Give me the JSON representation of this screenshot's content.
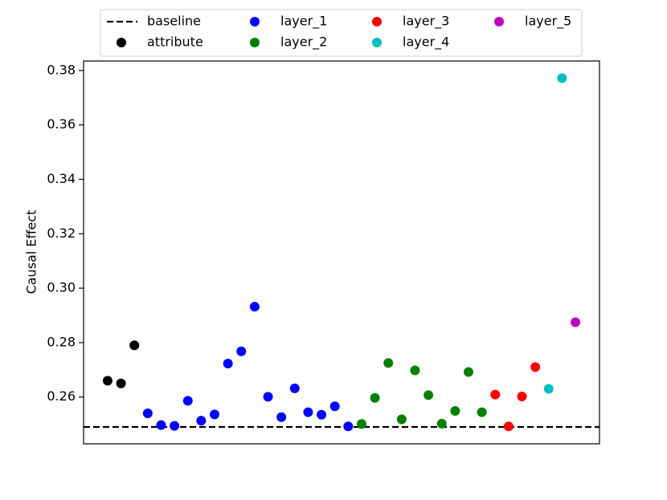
{
  "chart_data": {
    "type": "scatter",
    "title": "",
    "xlabel": "",
    "ylabel": "Causal Effect",
    "ylim": [
      0.2428,
      0.3835
    ],
    "xlim": [
      -1.8,
      36.8
    ],
    "yticks": [
      0.26,
      0.28,
      0.3,
      0.32,
      0.34,
      0.36,
      0.38
    ],
    "ytick_labels": [
      "0.26",
      "0.28",
      "0.30",
      "0.32",
      "0.34",
      "0.36",
      "0.38"
    ],
    "show_x_ticks": false,
    "grid": false,
    "legend_position": "top-center, above plot",
    "baseline": {
      "name": "baseline",
      "value": 0.249,
      "color": "#000000",
      "style": "dashed"
    },
    "series": [
      {
        "name": "attribute",
        "color": "#000000",
        "points": [
          {
            "x": 0,
            "y": 0.266
          },
          {
            "x": 1,
            "y": 0.265
          },
          {
            "x": 2,
            "y": 0.279
          }
        ]
      },
      {
        "name": "layer_1",
        "color": "#0000ff",
        "points": [
          {
            "x": 3,
            "y": 0.254
          },
          {
            "x": 4,
            "y": 0.2497
          },
          {
            "x": 5,
            "y": 0.2494
          },
          {
            "x": 6,
            "y": 0.2586
          },
          {
            "x": 7,
            "y": 0.2513
          },
          {
            "x": 8,
            "y": 0.2536
          },
          {
            "x": 9,
            "y": 0.2723
          },
          {
            "x": 10,
            "y": 0.2768
          },
          {
            "x": 11,
            "y": 0.2932
          },
          {
            "x": 12,
            "y": 0.2601
          },
          {
            "x": 13,
            "y": 0.2526
          },
          {
            "x": 14,
            "y": 0.2632
          },
          {
            "x": 15,
            "y": 0.2544
          },
          {
            "x": 16,
            "y": 0.2535
          },
          {
            "x": 17,
            "y": 0.2566
          },
          {
            "x": 18,
            "y": 0.2492
          }
        ]
      },
      {
        "name": "layer_2",
        "color": "#008000",
        "points": [
          {
            "x": 19,
            "y": 0.2501
          },
          {
            "x": 20,
            "y": 0.2597
          },
          {
            "x": 21,
            "y": 0.2725
          },
          {
            "x": 22,
            "y": 0.2518
          },
          {
            "x": 23,
            "y": 0.2698
          },
          {
            "x": 24,
            "y": 0.2607
          },
          {
            "x": 25,
            "y": 0.2502
          },
          {
            "x": 26,
            "y": 0.2549
          },
          {
            "x": 27,
            "y": 0.2692
          },
          {
            "x": 28,
            "y": 0.2544
          }
        ]
      },
      {
        "name": "layer_3",
        "color": "#ff0000",
        "points": [
          {
            "x": 29,
            "y": 0.2609
          },
          {
            "x": 30,
            "y": 0.2492
          },
          {
            "x": 31,
            "y": 0.2602
          },
          {
            "x": 32,
            "y": 0.271
          }
        ]
      },
      {
        "name": "layer_4",
        "color": "#00bfbf",
        "points": [
          {
            "x": 33,
            "y": 0.263
          },
          {
            "x": 34,
            "y": 0.3772
          }
        ]
      },
      {
        "name": "layer_5",
        "color": "#bf00bf",
        "points": [
          {
            "x": 35,
            "y": 0.2875
          }
        ]
      }
    ]
  }
}
